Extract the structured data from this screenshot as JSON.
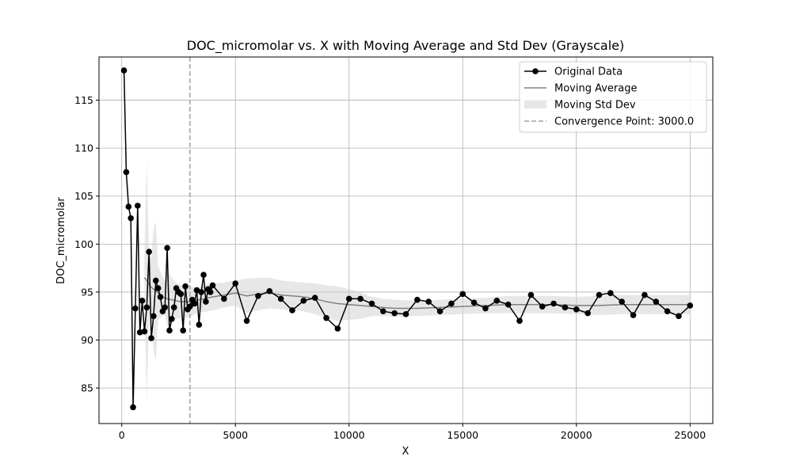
{
  "chart_data": {
    "type": "line",
    "title": "DOC_micromolar vs. X with Moving Average and Std Dev (Grayscale)",
    "xlabel": "X",
    "ylabel": "DOC_micromolar",
    "xlim": [
      -1000,
      26000
    ],
    "ylim": [
      81.3,
      119.5
    ],
    "xticks": [
      0,
      5000,
      10000,
      15000,
      20000,
      25000
    ],
    "xtick_labels": [
      "0",
      "5000",
      "10000",
      "15000",
      "20000",
      "25000"
    ],
    "yticks": [
      85,
      90,
      95,
      100,
      105,
      110,
      115
    ],
    "ytick_labels": [
      "85",
      "90",
      "95",
      "100",
      "105",
      "110",
      "115"
    ],
    "grid": true,
    "legend_placement": "top-right",
    "colors": {
      "original": "#000000",
      "moving_average": "#808080",
      "std_band": "#d3d3d3",
      "convergence": "#a0a0a0",
      "grid": "#b0b0b0"
    },
    "convergence_point": 3000.0,
    "series": [
      {
        "name": "Original Data",
        "x": [
          100,
          200,
          300,
          400,
          500,
          600,
          700,
          800,
          900,
          1000,
          1100,
          1200,
          1300,
          1400,
          1500,
          1600,
          1700,
          1800,
          1900,
          2000,
          2100,
          2200,
          2300,
          2400,
          2500,
          2600,
          2700,
          2800,
          2900,
          3000,
          3100,
          3200,
          3300,
          3400,
          3500,
          3600,
          3700,
          3800,
          3900,
          4000,
          4500,
          5000,
          5500,
          6000,
          6500,
          7000,
          7500,
          8000,
          8500,
          9000,
          9500,
          10000,
          10500,
          11000,
          11500,
          12000,
          12500,
          13000,
          13500,
          14000,
          14500,
          15000,
          15500,
          16000,
          16500,
          17000,
          17500,
          18000,
          18500,
          19000,
          19500,
          20000,
          20500,
          21000,
          21500,
          22000,
          22500,
          23000,
          23500,
          24000,
          24500,
          25000
        ],
        "y": [
          118.1,
          107.5,
          103.9,
          102.7,
          83.0,
          93.3,
          104.0,
          90.8,
          94.1,
          90.9,
          93.4,
          99.2,
          90.2,
          92.5,
          96.2,
          95.4,
          94.5,
          93.0,
          93.4,
          99.6,
          91.0,
          92.2,
          93.4,
          95.4,
          95.0,
          94.8,
          91.0,
          95.6,
          93.2,
          93.5,
          94.2,
          93.8,
          95.2,
          91.6,
          95.0,
          96.8,
          94.0,
          95.3,
          95.0,
          95.7,
          94.3,
          95.9,
          92.0,
          94.6,
          95.1,
          94.3,
          93.1,
          94.1,
          94.4,
          92.3,
          91.2,
          94.3,
          94.3,
          93.8,
          93.0,
          92.8,
          92.7,
          94.2,
          94.0,
          93.0,
          93.8,
          94.8,
          93.9,
          93.3,
          94.1,
          93.7,
          92.0,
          94.7,
          93.5,
          93.8,
          93.4,
          93.2,
          92.8,
          94.7,
          94.9,
          94.0,
          92.6,
          94.7,
          94.0,
          93.0,
          92.5,
          93.6
        ]
      },
      {
        "name": "Moving Average",
        "x": [
          1000,
          1100,
          1200,
          1300,
          1400,
          1500,
          1600,
          1700,
          1800,
          1900,
          2000,
          2200,
          2400,
          2600,
          2800,
          3000,
          3200,
          3400,
          3600,
          3800,
          4000,
          4500,
          5000,
          5500,
          6000,
          6500,
          7000,
          7500,
          8000,
          8500,
          9000,
          9500,
          10000,
          10500,
          11000,
          11500,
          12000,
          13000,
          14000,
          15000,
          16000,
          17000,
          18000,
          19000,
          20000,
          21000,
          22000,
          23000,
          24000,
          25000
        ],
        "y": [
          96.5,
          96.2,
          95.8,
          95.5,
          95.3,
          95.1,
          94.9,
          94.7,
          94.5,
          94.4,
          94.3,
          94.2,
          94.1,
          94.0,
          94.0,
          94.0,
          94.1,
          94.2,
          94.3,
          94.4,
          94.5,
          94.7,
          94.9,
          94.6,
          94.8,
          94.9,
          94.7,
          94.6,
          94.5,
          94.3,
          94.0,
          93.8,
          93.7,
          93.6,
          93.5,
          93.4,
          93.3,
          93.3,
          93.4,
          93.5,
          93.6,
          93.7,
          93.7,
          93.7,
          93.6,
          93.6,
          93.7,
          93.7,
          93.7,
          93.7
        ]
      },
      {
        "name": "Moving Std Dev",
        "x": [
          1000,
          1100,
          1200,
          1300,
          1400,
          1500,
          1600,
          1700,
          1800,
          1900,
          2000,
          2200,
          2400,
          2600,
          2800,
          3000,
          3200,
          3400,
          3600,
          3800,
          4000,
          4500,
          5000,
          5500,
          6000,
          6500,
          7000,
          7500,
          8000,
          8500,
          9000,
          9500,
          10000,
          10500,
          11000,
          11500,
          12000,
          13000,
          14000,
          15000,
          16000,
          17000,
          18000,
          19000,
          20000,
          21000,
          22000,
          23000,
          24000,
          25000
        ],
        "std": [
          2.5,
          12.6,
          3.3,
          3.0,
          6.4,
          7.2,
          2.8,
          2.4,
          2.0,
          1.8,
          2.9,
          2.3,
          1.9,
          1.7,
          1.7,
          1.6,
          1.4,
          1.3,
          1.4,
          1.4,
          1.4,
          1.3,
          1.3,
          1.8,
          1.7,
          1.6,
          1.5,
          1.5,
          1.5,
          1.6,
          1.7,
          1.8,
          1.6,
          1.4,
          1.0,
          0.9,
          0.9,
          0.8,
          0.8,
          0.8,
          0.8,
          0.9,
          0.9,
          0.9,
          0.9,
          1.0,
          1.0,
          1.0,
          1.0,
          1.0
        ]
      }
    ],
    "legend": [
      {
        "label": "Original Data",
        "kind": "line-marker"
      },
      {
        "label": "Moving Average",
        "kind": "line"
      },
      {
        "label": "Moving Std Dev",
        "kind": "patch"
      },
      {
        "label": "Convergence Point: 3000.0",
        "kind": "dashed"
      }
    ]
  }
}
